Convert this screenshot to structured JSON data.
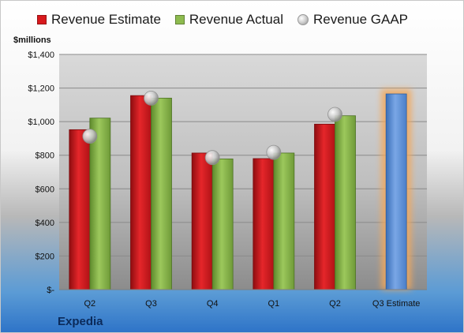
{
  "legend": {
    "estimate": "Revenue Estimate",
    "actual": "Revenue Actual",
    "gaap": "Revenue GAAP"
  },
  "y_unit": "$millions",
  "company": "Expedia",
  "colors": {
    "estimate": "#d8191d",
    "actual": "#8dbb4f",
    "projected": "#5b8ed6",
    "gaap": "#bdbdbd"
  },
  "chart_data": {
    "type": "bar",
    "categories": [
      "Q2",
      "Q3",
      "Q4",
      "Q1",
      "Q2",
      "Q3 Estimate"
    ],
    "series": [
      {
        "name": "Revenue Estimate",
        "values": [
          952,
          1155,
          813,
          780,
          985,
          1165
        ]
      },
      {
        "name": "Revenue Actual",
        "values": [
          1021,
          1140,
          778,
          813,
          1035,
          null
        ]
      },
      {
        "name": "Revenue GAAP",
        "values": [
          913,
          1140,
          786,
          817,
          1043,
          null
        ]
      }
    ],
    "y_ticks": [
      "$-",
      "$200",
      "$400",
      "$600",
      "$800",
      "$1,000",
      "$1,200",
      "$1,400"
    ],
    "ylim": [
      0,
      1400
    ],
    "grid": true,
    "legend_position": "top"
  }
}
